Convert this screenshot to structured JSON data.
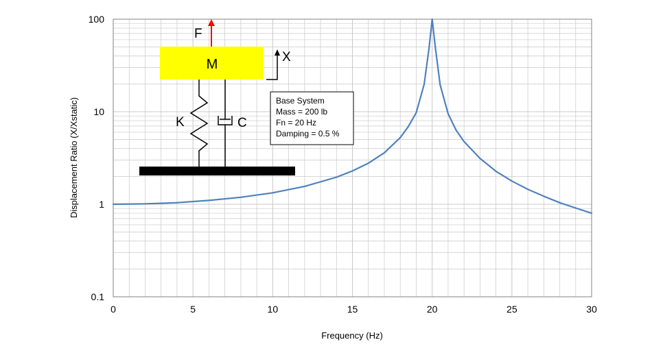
{
  "chart_data": {
    "type": "line",
    "title": "",
    "xlabel": "Frequency (Hz)",
    "ylabel": "Displacement Ratio (X/Xstatic)",
    "xlim": [
      0,
      30
    ],
    "ylim": [
      0.1,
      100
    ],
    "yscale": "log",
    "xticks": [
      "0",
      "5",
      "10",
      "15",
      "20",
      "25",
      "30"
    ],
    "yticks": [
      "0.1",
      "1",
      "10",
      "100"
    ],
    "grid": true,
    "series": [
      {
        "color": "#4f81bd",
        "x": [
          0,
          2,
          4,
          6,
          8,
          10,
          12,
          14,
          15,
          16,
          17,
          18,
          18.5,
          19,
          19.5,
          19.8,
          20,
          20.2,
          20.5,
          21,
          21.5,
          22,
          23,
          24,
          25,
          26,
          27,
          28,
          29,
          30
        ],
        "y": [
          1.0,
          1.01,
          1.04,
          1.1,
          1.19,
          1.33,
          1.56,
          1.96,
          2.29,
          2.78,
          3.6,
          5.26,
          6.9,
          9.74,
          19.8,
          48,
          100,
          49.5,
          19.5,
          9.52,
          6.32,
          4.76,
          3.13,
          2.27,
          1.78,
          1.45,
          1.22,
          1.04,
          0.91,
          0.8
        ]
      }
    ],
    "annotations": {
      "info_box": [
        "Base System",
        "Mass = 200 lb",
        "Fn = 20 Hz",
        "Damping = 0.5 %"
      ],
      "diagram": {
        "force": "F",
        "mass": "M",
        "displacement": "X",
        "spring": "K",
        "damper": "C"
      }
    },
    "colors": {
      "curve": "#4f81bd",
      "mass_block": "#ffff00",
      "force_arrow": "#ff0000",
      "grid": "#c8c8c8"
    }
  }
}
